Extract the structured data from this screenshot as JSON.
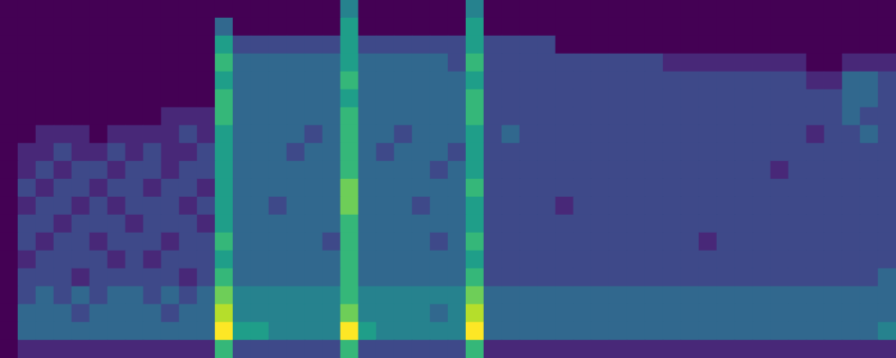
{
  "chart_data": {
    "type": "heatmap",
    "x": [
      0,
      1,
      2,
      3,
      4,
      5,
      6,
      7,
      8,
      9,
      10,
      11,
      12,
      13,
      14,
      15,
      16,
      17,
      18,
      19,
      20,
      21,
      22,
      23,
      24,
      25,
      26,
      27,
      28,
      29,
      30,
      31,
      32,
      33,
      34,
      35,
      36,
      37,
      38,
      39,
      40,
      41,
      42,
      43,
      44,
      45,
      46,
      47,
      48,
      49
    ],
    "y": [
      0,
      1,
      2,
      3,
      4,
      5,
      6,
      7,
      8,
      9,
      10,
      11,
      12,
      13,
      14,
      15,
      16,
      17,
      18,
      19
    ],
    "color_range": [
      0,
      9
    ],
    "tick_labels": false,
    "values": [
      [
        0,
        0,
        0,
        0,
        0,
        0,
        0,
        0,
        0,
        0,
        0,
        0,
        0,
        0,
        0,
        0,
        0,
        0,
        0,
        4,
        0,
        0,
        0,
        0,
        0,
        0,
        4,
        0,
        0,
        0,
        0,
        0,
        0,
        0,
        0,
        0,
        0,
        0,
        0,
        0,
        0,
        0,
        0,
        0,
        0,
        0,
        0,
        0,
        0,
        0
      ],
      [
        0,
        0,
        0,
        0,
        0,
        0,
        0,
        0,
        0,
        0,
        0,
        0,
        3,
        0,
        0,
        0,
        0,
        0,
        0,
        5,
        0,
        0,
        0,
        0,
        0,
        0,
        5,
        0,
        0,
        0,
        0,
        0,
        0,
        0,
        0,
        0,
        0,
        0,
        0,
        0,
        0,
        0,
        0,
        0,
        0,
        0,
        0,
        0,
        0,
        0
      ],
      [
        0,
        0,
        0,
        0,
        0,
        0,
        0,
        0,
        0,
        0,
        0,
        0,
        5,
        2,
        2,
        2,
        2,
        2,
        2,
        5,
        2,
        2,
        2,
        2,
        2,
        2,
        5,
        2,
        2,
        2,
        2,
        0,
        0,
        0,
        0,
        0,
        0,
        0,
        0,
        0,
        0,
        0,
        0,
        0,
        0,
        0,
        0,
        0,
        0,
        0
      ],
      [
        0,
        0,
        0,
        0,
        0,
        0,
        0,
        0,
        0,
        0,
        0,
        0,
        6,
        3,
        3,
        3,
        3,
        3,
        3,
        5,
        3,
        3,
        3,
        3,
        3,
        2,
        6,
        2,
        2,
        2,
        2,
        2,
        2,
        2,
        2,
        2,
        2,
        1,
        1,
        1,
        1,
        1,
        1,
        1,
        1,
        0,
        0,
        1,
        1,
        1
      ],
      [
        0,
        0,
        0,
        0,
        0,
        0,
        0,
        0,
        0,
        0,
        0,
        0,
        5,
        3,
        3,
        3,
        3,
        3,
        3,
        6,
        3,
        3,
        3,
        3,
        3,
        3,
        5,
        2,
        2,
        2,
        2,
        2,
        2,
        2,
        2,
        2,
        2,
        2,
        2,
        2,
        2,
        2,
        2,
        2,
        2,
        1,
        1,
        3,
        3,
        2
      ],
      [
        0,
        0,
        0,
        0,
        0,
        0,
        0,
        0,
        0,
        0,
        0,
        0,
        6,
        3,
        3,
        3,
        3,
        3,
        3,
        5,
        3,
        3,
        3,
        3,
        3,
        3,
        6,
        2,
        2,
        2,
        2,
        2,
        2,
        2,
        2,
        2,
        2,
        2,
        2,
        2,
        2,
        2,
        2,
        2,
        2,
        2,
        2,
        3,
        3,
        2
      ],
      [
        0,
        0,
        0,
        0,
        0,
        0,
        0,
        0,
        0,
        1,
        1,
        1,
        6,
        3,
        3,
        3,
        3,
        3,
        3,
        6,
        3,
        3,
        3,
        3,
        3,
        3,
        6,
        2,
        2,
        2,
        2,
        2,
        2,
        2,
        2,
        2,
        2,
        2,
        2,
        2,
        2,
        2,
        2,
        2,
        2,
        2,
        2,
        3,
        2,
        2
      ],
      [
        0,
        0,
        1,
        1,
        1,
        0,
        1,
        1,
        1,
        1,
        2,
        1,
        5,
        3,
        3,
        3,
        3,
        2,
        3,
        6,
        3,
        3,
        2,
        3,
        3,
        3,
        5,
        2,
        3,
        2,
        2,
        2,
        2,
        2,
        2,
        2,
        2,
        2,
        2,
        2,
        2,
        2,
        2,
        2,
        2,
        1,
        2,
        2,
        3,
        2
      ],
      [
        0,
        1,
        1,
        2,
        1,
        1,
        2,
        1,
        2,
        1,
        1,
        2,
        5,
        3,
        3,
        3,
        2,
        3,
        3,
        6,
        3,
        2,
        3,
        3,
        3,
        2,
        5,
        2,
        2,
        2,
        2,
        2,
        2,
        2,
        2,
        2,
        2,
        2,
        2,
        2,
        2,
        2,
        2,
        2,
        2,
        2,
        2,
        2,
        2,
        2
      ],
      [
        0,
        1,
        2,
        1,
        2,
        2,
        1,
        2,
        2,
        1,
        2,
        2,
        5,
        3,
        3,
        3,
        3,
        3,
        3,
        6,
        3,
        3,
        3,
        3,
        2,
        3,
        5,
        2,
        2,
        2,
        2,
        2,
        2,
        2,
        2,
        2,
        2,
        2,
        2,
        2,
        2,
        2,
        2,
        1,
        2,
        2,
        2,
        2,
        2,
        2
      ],
      [
        0,
        2,
        1,
        2,
        2,
        1,
        2,
        2,
        1,
        2,
        2,
        1,
        5,
        3,
        3,
        3,
        3,
        3,
        3,
        7,
        3,
        3,
        3,
        3,
        3,
        3,
        6,
        2,
        2,
        2,
        2,
        2,
        2,
        2,
        2,
        2,
        2,
        2,
        2,
        2,
        2,
        2,
        2,
        2,
        2,
        2,
        2,
        2,
        2,
        2
      ],
      [
        0,
        1,
        2,
        2,
        1,
        2,
        1,
        2,
        2,
        2,
        1,
        2,
        5,
        3,
        3,
        2,
        3,
        3,
        3,
        7,
        3,
        3,
        3,
        2,
        3,
        3,
        5,
        2,
        2,
        2,
        2,
        1,
        2,
        2,
        2,
        2,
        2,
        2,
        2,
        2,
        2,
        2,
        2,
        2,
        2,
        2,
        2,
        2,
        2,
        2
      ],
      [
        0,
        2,
        2,
        1,
        2,
        2,
        2,
        1,
        2,
        2,
        2,
        1,
        5,
        3,
        3,
        3,
        3,
        3,
        3,
        6,
        3,
        3,
        3,
        3,
        3,
        3,
        5,
        2,
        2,
        2,
        2,
        2,
        2,
        2,
        2,
        2,
        2,
        2,
        2,
        2,
        2,
        2,
        2,
        2,
        2,
        2,
        2,
        2,
        2,
        2
      ],
      [
        0,
        2,
        1,
        2,
        2,
        1,
        2,
        2,
        2,
        1,
        2,
        2,
        6,
        3,
        3,
        3,
        3,
        3,
        2,
        6,
        3,
        3,
        3,
        3,
        2,
        3,
        6,
        2,
        2,
        2,
        2,
        2,
        2,
        2,
        2,
        2,
        2,
        2,
        2,
        1,
        2,
        2,
        2,
        2,
        2,
        2,
        2,
        2,
        2,
        2
      ],
      [
        0,
        1,
        2,
        2,
        2,
        2,
        1,
        2,
        1,
        2,
        2,
        2,
        5,
        3,
        3,
        3,
        3,
        3,
        3,
        6,
        3,
        3,
        3,
        3,
        3,
        3,
        5,
        2,
        2,
        2,
        2,
        2,
        2,
        2,
        2,
        2,
        2,
        2,
        2,
        2,
        2,
        2,
        2,
        2,
        2,
        2,
        2,
        2,
        2,
        2
      ],
      [
        0,
        2,
        2,
        2,
        1,
        2,
        2,
        2,
        2,
        2,
        1,
        2,
        6,
        3,
        3,
        3,
        3,
        3,
        3,
        6,
        3,
        3,
        3,
        3,
        3,
        3,
        6,
        2,
        2,
        2,
        2,
        2,
        2,
        2,
        2,
        2,
        2,
        2,
        2,
        2,
        2,
        2,
        2,
        2,
        2,
        2,
        2,
        2,
        2,
        3
      ],
      [
        0,
        2,
        3,
        2,
        3,
        2,
        3,
        3,
        2,
        3,
        2,
        3,
        7,
        4,
        4,
        4,
        4,
        4,
        4,
        6,
        4,
        4,
        4,
        4,
        4,
        4,
        7,
        3,
        3,
        3,
        3,
        3,
        3,
        3,
        3,
        3,
        3,
        3,
        3,
        3,
        3,
        3,
        3,
        3,
        3,
        3,
        3,
        3,
        3,
        3
      ],
      [
        0,
        3,
        3,
        3,
        2,
        3,
        3,
        3,
        3,
        2,
        3,
        3,
        8,
        4,
        4,
        4,
        4,
        4,
        4,
        7,
        4,
        4,
        4,
        4,
        3,
        4,
        8,
        3,
        3,
        3,
        3,
        3,
        3,
        3,
        3,
        3,
        3,
        3,
        3,
        3,
        3,
        3,
        3,
        3,
        3,
        3,
        3,
        3,
        3,
        3
      ],
      [
        0,
        3,
        3,
        3,
        3,
        3,
        3,
        3,
        3,
        3,
        3,
        3,
        9,
        5,
        5,
        4,
        4,
        4,
        4,
        9,
        5,
        4,
        4,
        4,
        4,
        4,
        9,
        3,
        3,
        3,
        3,
        3,
        3,
        3,
        3,
        3,
        3,
        3,
        3,
        3,
        3,
        3,
        3,
        3,
        3,
        3,
        3,
        3,
        3,
        4
      ],
      [
        0,
        1,
        1,
        1,
        1,
        1,
        1,
        1,
        1,
        1,
        1,
        1,
        6,
        2,
        2,
        2,
        2,
        2,
        2,
        6,
        2,
        2,
        2,
        2,
        2,
        2,
        6,
        1,
        1,
        1,
        1,
        1,
        1,
        1,
        1,
        1,
        1,
        1,
        1,
        1,
        1,
        1,
        1,
        1,
        1,
        1,
        1,
        1,
        1,
        1
      ]
    ]
  }
}
